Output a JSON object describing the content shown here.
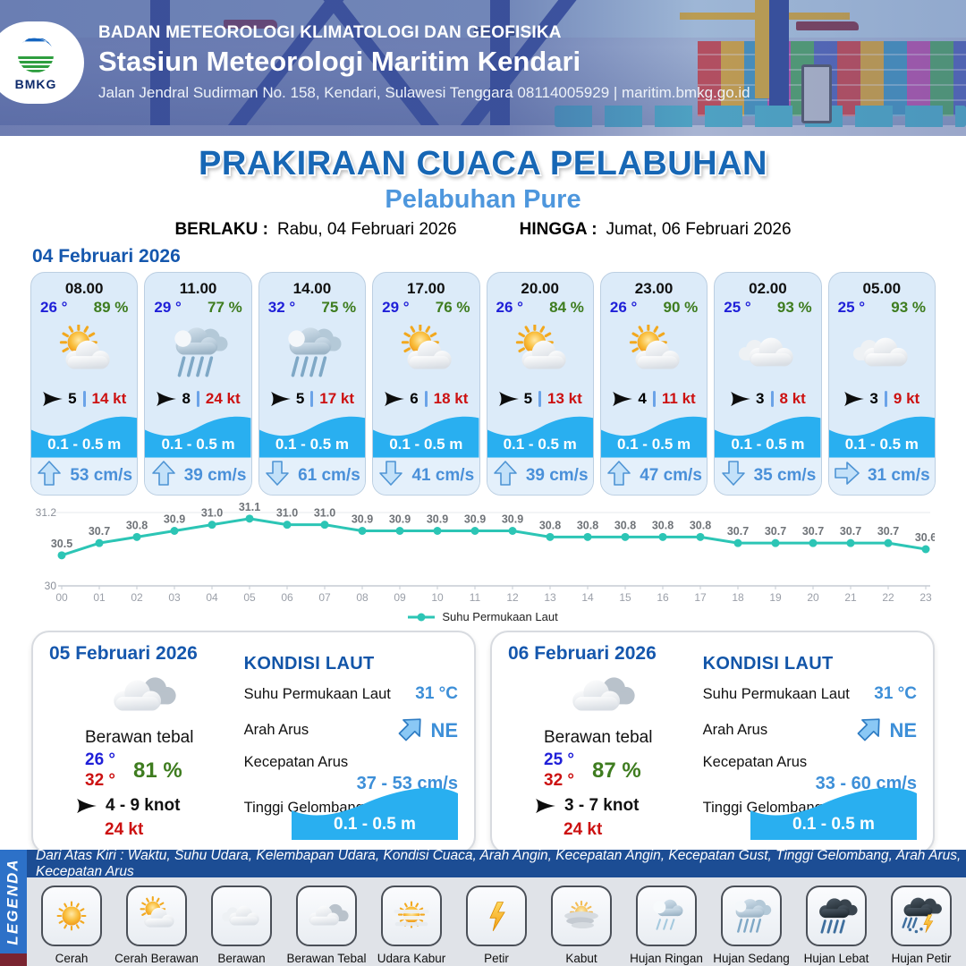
{
  "header": {
    "logo": "BMKG",
    "agency": "BADAN METEOROLOGI KLIMATOLOGI DAN GEOFISIKA",
    "station": "Stasiun Meteorologi Maritim Kendari",
    "address": "Jalan Jendral Sudirman No. 158, Kendari, Sulawesi Tenggara  08114005929 | maritim.bmkg.go.id"
  },
  "title": {
    "main": "PRAKIRAAN CUACA PELABUHAN",
    "subtitle": "Pelabuhan Pure",
    "valid_from_label": "BERLAKU :",
    "valid_from": "Rabu, 04 Februari 2026",
    "valid_to_label": "HINGGA :",
    "valid_to": "Jumat, 06 Februari 2026"
  },
  "hourly_date": "04 Februari 2026",
  "hourly": [
    {
      "time": "08.00",
      "temp": "26 °",
      "humidity": "89 %",
      "icon": "cerah-berawan",
      "wind_speed": "5",
      "gust": "14 kt",
      "wave": "0.1 - 0.5 m",
      "current_dir": "up",
      "current_speed": "53 cm/s"
    },
    {
      "time": "11.00",
      "temp": "29 °",
      "humidity": "77 %",
      "icon": "hujan-sedang",
      "wind_speed": "8",
      "gust": "24 kt",
      "wave": "0.1 - 0.5 m",
      "current_dir": "up",
      "current_speed": "39 cm/s"
    },
    {
      "time": "14.00",
      "temp": "32 °",
      "humidity": "75 %",
      "icon": "hujan-sedang",
      "wind_speed": "5",
      "gust": "17 kt",
      "wave": "0.1 - 0.5 m",
      "current_dir": "down",
      "current_speed": "61 cm/s"
    },
    {
      "time": "17.00",
      "temp": "29 °",
      "humidity": "76 %",
      "icon": "cerah-berawan",
      "wind_speed": "6",
      "gust": "18 kt",
      "wave": "0.1 - 0.5 m",
      "current_dir": "down",
      "current_speed": "41 cm/s"
    },
    {
      "time": "20.00",
      "temp": "26 °",
      "humidity": "84 %",
      "icon": "cerah-berawan",
      "wind_speed": "5",
      "gust": "13 kt",
      "wave": "0.1 - 0.5 m",
      "current_dir": "up",
      "current_speed": "39 cm/s"
    },
    {
      "time": "23.00",
      "temp": "26 °",
      "humidity": "90 %",
      "icon": "cerah-berawan",
      "wind_speed": "4",
      "gust": "11 kt",
      "wave": "0.1 - 0.5 m",
      "current_dir": "up",
      "current_speed": "47 cm/s"
    },
    {
      "time": "02.00",
      "temp": "25 °",
      "humidity": "93 %",
      "icon": "berawan",
      "wind_speed": "3",
      "gust": "8 kt",
      "wave": "0.1 - 0.5 m",
      "current_dir": "down",
      "current_speed": "35 cm/s"
    },
    {
      "time": "05.00",
      "temp": "25 °",
      "humidity": "93 %",
      "icon": "berawan",
      "wind_speed": "3",
      "gust": "9 kt",
      "wave": "0.1 - 0.5 m",
      "current_dir": "right",
      "current_speed": "31 cm/s"
    }
  ],
  "chart_data": {
    "type": "line",
    "x": [
      "00",
      "01",
      "02",
      "03",
      "04",
      "05",
      "06",
      "07",
      "08",
      "09",
      "10",
      "11",
      "12",
      "13",
      "14",
      "15",
      "16",
      "17",
      "18",
      "19",
      "20",
      "21",
      "22",
      "23"
    ],
    "series": [
      {
        "name": "Suhu Permukaan Laut",
        "values": [
          30.5,
          30.7,
          30.8,
          30.9,
          31.0,
          31.1,
          31.0,
          31.0,
          30.9,
          30.9,
          30.9,
          30.9,
          30.9,
          30.8,
          30.8,
          30.8,
          30.8,
          30.8,
          30.7,
          30.7,
          30.7,
          30.7,
          30.7,
          30.6
        ]
      }
    ],
    "ylim": [
      30,
      31.2
    ],
    "yticks": [
      30,
      31.2
    ],
    "line_color": "#2cc5b5",
    "grid": false,
    "legend_position": "bottom"
  },
  "daily": [
    {
      "date": "05 Februari 2026",
      "icon": "berawan-tebal",
      "condition": "Berawan tebal",
      "temp_min": "26 °",
      "temp_max": "32 °",
      "humidity": "81 %",
      "wind_range": "4 - 9 knot",
      "gust": "24 kt",
      "sea": {
        "sst": "31 °C",
        "current_dir": "NE",
        "current_speed": "37 - 53 cm/s",
        "wave": "0.1 - 0.5 m"
      }
    },
    {
      "date": "06 Februari 2026",
      "icon": "berawan-tebal",
      "condition": "Berawan tebal",
      "temp_min": "25 °",
      "temp_max": "32 °",
      "humidity": "87 %",
      "wind_range": "3 - 7 knot",
      "gust": "24 kt",
      "sea": {
        "sst": "31 °C",
        "current_dir": "NE",
        "current_speed": "33 - 60 cm/s",
        "wave": "0.1 - 0.5 m"
      }
    }
  ],
  "sea_labels": {
    "heading": "KONDISI LAUT",
    "sst": "Suhu Permukaan Laut",
    "current_dir": "Arah Arus",
    "current_speed": "Kecepatan Arus",
    "wave": "Tinggi Gelombang"
  },
  "legend": {
    "title": "LEGENDA",
    "description": "Dari Atas Kiri : Waktu, Suhu Udara, Kelembapan Udara, Kondisi Cuaca, Arah Angin, Kecepatan Angin, Kecepatan Gust, Tinggi Gelombang, Arah Arus, Kecepatan Arus",
    "items": [
      {
        "label": "Cerah",
        "icon": "cerah"
      },
      {
        "label": "Cerah Berawan",
        "icon": "cerah-berawan"
      },
      {
        "label": "Berawan",
        "icon": "berawan"
      },
      {
        "label": "Berawan Tebal",
        "icon": "berawan-tebal"
      },
      {
        "label": "Udara Kabur",
        "icon": "udara-kabur"
      },
      {
        "label": "Petir",
        "icon": "petir"
      },
      {
        "label": "Kabut",
        "icon": "kabut"
      },
      {
        "label": "Hujan Ringan",
        "icon": "hujan-ringan"
      },
      {
        "label": "Hujan Sedang",
        "icon": "hujan-sedang"
      },
      {
        "label": "Hujan Lebat",
        "icon": "hujan-lebat"
      },
      {
        "label": "Hujan Petir",
        "icon": "hujan-petir"
      }
    ]
  },
  "colors": {
    "title_blue": "#1767b5",
    "subtitle_blue": "#4e97dd",
    "date_blue": "#1557ad",
    "temp_blue": "#1f1fd8",
    "temp_max_red": "#cc1111",
    "humidity_green": "#3e7c1f",
    "gust_red": "#cc1111",
    "wave_blue": "#29aff0",
    "current_text_blue": "#4a90d9",
    "sea_value_blue": "#3d8fd8",
    "chart_teal": "#2cc5b5",
    "legend_bar_blue": "#2d71c8",
    "legend_strip_blue": "#1c4d94"
  }
}
